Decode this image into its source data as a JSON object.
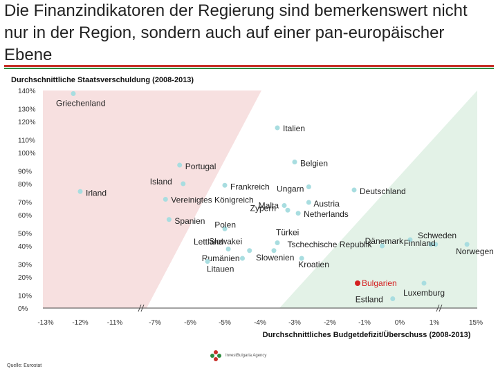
{
  "headline": "Die Finanzindikatoren der Regierung sind bemerkenswert nicht nur in der Region, sondern auch auf einer pan-europäischer Ebene",
  "source": "Quelle: Eurostat",
  "logo_text": "InvestBulgaria Agency",
  "colors": {
    "red_zone": "#f7e0e0",
    "green_zone": "#e3f2e7",
    "point": "#a8dde0",
    "highlight": "#d42020",
    "rule_red": "#c8302a",
    "rule_green": "#2e8b3e"
  },
  "chart_data": {
    "type": "scatter",
    "title": "Durchschnittliche Staatsverschuldung (2008-2013)",
    "xlabel": "Durchschnittliches Budgetdefizit/Überschuss (2008-2013)",
    "ylabel": "",
    "x_ticks": [
      "-13%",
      "-12%",
      "-11%",
      "-7%",
      "-6%",
      "-5%",
      "-4%",
      "-3%",
      "-2%",
      "-1%",
      "0%",
      "1%",
      "15%"
    ],
    "y_ticks": [
      "0%",
      "10%",
      "20%",
      "30%",
      "40%",
      "50%",
      "60%",
      "70%",
      "80%",
      "90%",
      "100%",
      "110%",
      "120%",
      "130%",
      "140%"
    ],
    "ylim": [
      0,
      140
    ],
    "axis_breaks": [
      "-11%/-7%",
      "1%/15%"
    ],
    "points": [
      {
        "label": "Griechenland",
        "x": -12.2,
        "y": 138
      },
      {
        "label": "Italien",
        "x": -3.5,
        "y": 116
      },
      {
        "label": "Belgien",
        "x": -3.0,
        "y": 94
      },
      {
        "label": "Portugal",
        "x": -6.3,
        "y": 92
      },
      {
        "label": "Island",
        "x": -6.2,
        "y": 80
      },
      {
        "label": "Frankreich",
        "x": -5.0,
        "y": 79
      },
      {
        "label": "Ungarn",
        "x": -2.6,
        "y": 78
      },
      {
        "label": "Deutschland",
        "x": -1.3,
        "y": 76
      },
      {
        "label": "Irland",
        "x": -12.0,
        "y": 75
      },
      {
        "label": "Vereinigtes Königreich",
        "x": -6.7,
        "y": 70
      },
      {
        "label": "Austria",
        "x": -2.6,
        "y": 68
      },
      {
        "label": "Malta",
        "x": -3.3,
        "y": 66
      },
      {
        "label": "Zypern",
        "x": -3.2,
        "y": 63
      },
      {
        "label": "Netherlands",
        "x": -2.9,
        "y": 61
      },
      {
        "label": "Spanien",
        "x": -6.6,
        "y": 57
      },
      {
        "label": "Polen",
        "x": -5.0,
        "y": 51
      },
      {
        "label": "Türkei",
        "x": -3.5,
        "y": 42
      },
      {
        "label": "Dänemark",
        "x": 0.3,
        "y": 44
      },
      {
        "label": "Schweden",
        "x": 0.9,
        "y": 41
      },
      {
        "label": "Tschechische Republik",
        "x": -0.5,
        "y": 40
      },
      {
        "label": "Finnland",
        "x": 1.4,
        "y": 41
      },
      {
        "label": "Slowakei",
        "x": -4.9,
        "y": 38
      },
      {
        "label": "Lettland",
        "x": -4.3,
        "y": 37
      },
      {
        "label": "Norwegen",
        "x": 12.0,
        "y": 41
      },
      {
        "label": "Slowenien",
        "x": -3.6,
        "y": 37
      },
      {
        "label": "Rumänien",
        "x": -4.5,
        "y": 32
      },
      {
        "label": "Litauen",
        "x": -5.5,
        "y": 30
      },
      {
        "label": "Kroatien",
        "x": -2.8,
        "y": 32
      },
      {
        "label": "Bulgarien",
        "x": -1.2,
        "y": 16,
        "highlight": true
      },
      {
        "label": "Luxemburg",
        "x": 0.7,
        "y": 16
      },
      {
        "label": "Estland",
        "x": -0.2,
        "y": 6
      }
    ]
  }
}
